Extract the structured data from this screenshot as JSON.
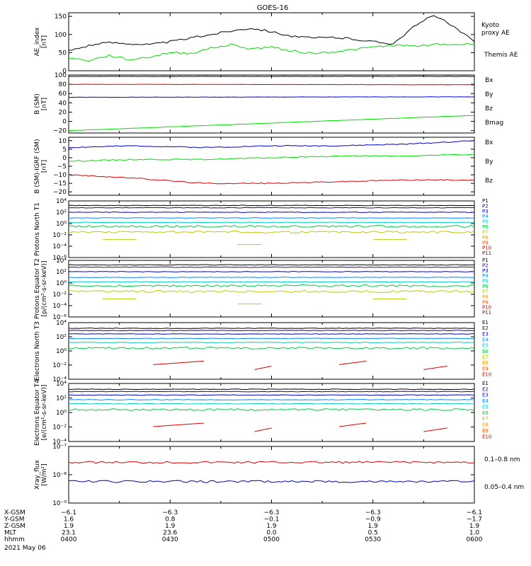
{
  "title": "GOES-16",
  "colors": {
    "black": "#000000",
    "green": "#00dd00",
    "blue": "#0000cc",
    "red": "#dd0000"
  },
  "chart_data": [
    {
      "type": "line",
      "ylabel": "AE_index [nT]",
      "yticks": [
        "0",
        "50",
        "100",
        "150"
      ],
      "ylim": [
        0,
        160
      ],
      "series": [
        {
          "name": "Kyoto proxy AE",
          "color": "#00dd00",
          "x": [
            0,
            6,
            12,
            18,
            24,
            30,
            36,
            42,
            48,
            54,
            60,
            66,
            72,
            78,
            84,
            90,
            96,
            102,
            108,
            114,
            120
          ],
          "y": [
            35,
            28,
            42,
            30,
            38,
            50,
            48,
            62,
            72,
            60,
            66,
            55,
            48,
            52,
            58,
            65,
            70,
            68,
            73,
            72,
            74
          ]
        },
        {
          "name": "Themis AE",
          "color": "#000000",
          "x": [
            0,
            6,
            12,
            18,
            24,
            30,
            36,
            42,
            48,
            54,
            60,
            66,
            72,
            78,
            84,
            90,
            96,
            102,
            108,
            114,
            120
          ],
          "y": [
            55,
            70,
            78,
            75,
            72,
            80,
            90,
            100,
            110,
            118,
            108,
            95,
            90,
            92,
            88,
            80,
            75,
            120,
            155,
            120,
            80
          ]
        }
      ],
      "legend_labels": [
        "Kyoto",
        "proxy AE",
        "Themis AE"
      ]
    },
    {
      "type": "line",
      "ylabel": "B (SM) [nT]",
      "yticks": [
        "100",
        "80",
        "60",
        "40",
        "20",
        "0",
        "−20"
      ],
      "ylim": [
        -25,
        100
      ],
      "series": [
        {
          "name": "Bx",
          "color": "#0000cc",
          "x": [
            0,
            120
          ],
          "y": [
            52,
            53
          ]
        },
        {
          "name": "By",
          "color": "#00dd00",
          "x": [
            0,
            120
          ],
          "y": [
            -20,
            13
          ]
        },
        {
          "name": "Bz",
          "color": "#dd0000",
          "x": [
            0,
            120
          ],
          "y": [
            80,
            79
          ]
        },
        {
          "name": "Bmag",
          "color": "#000000",
          "x": [
            0,
            120
          ],
          "y": [
            97,
            97
          ]
        }
      ]
    },
    {
      "type": "line",
      "ylabel": "B (SM)-IGRF (SM) [nT]",
      "yticks": [
        "10",
        "5",
        "0",
        "−5",
        "−10",
        "−15",
        "−20"
      ],
      "ylim": [
        -22,
        12
      ],
      "series": [
        {
          "name": "Bx",
          "color": "#0000cc",
          "x": [
            0,
            20,
            40,
            60,
            80,
            100,
            120
          ],
          "y": [
            6,
            7,
            6,
            7,
            7,
            8,
            10
          ]
        },
        {
          "name": "By",
          "color": "#00dd00",
          "x": [
            0,
            20,
            40,
            60,
            80,
            100,
            120
          ],
          "y": [
            -2,
            -1,
            -1,
            0,
            1,
            1,
            2
          ]
        },
        {
          "name": "Bz",
          "color": "#dd0000",
          "x": [
            0,
            20,
            40,
            60,
            80,
            100,
            120
          ],
          "y": [
            -10,
            -12,
            -15,
            -15,
            -14,
            -13,
            -13
          ]
        }
      ]
    },
    {
      "type": "line",
      "ylabel": "Protons North T1",
      "yticks": [
        "10⁴",
        "10²",
        "10⁰",
        "10⁻²",
        "10⁻⁴",
        "10⁻⁶"
      ],
      "log": true,
      "channels": [
        "P1",
        "P2",
        "P3",
        "P4",
        "P5",
        "P6",
        "P7",
        "P8",
        "P9",
        "P10",
        "P11"
      ],
      "channel_colors": [
        "#000000",
        "#330066",
        "#0000cc",
        "#0088ff",
        "#00cccc",
        "#00cc44",
        "#bbcc00",
        "#ff9900",
        "#ff5500",
        "#dd0000",
        "#990000"
      ]
    },
    {
      "type": "line",
      "ylabel": "Protons Equator T2 [p/(cm²-s-sr-keV)]",
      "yticks": [
        "10⁴",
        "10²",
        "10⁰",
        "10⁻²",
        "10⁻⁴",
        "10⁻⁶"
      ],
      "log": true,
      "channels": [
        "P1",
        "P2",
        "P3",
        "P4",
        "P5",
        "P6",
        "P7",
        "P8",
        "P9",
        "P10",
        "P11"
      ]
    },
    {
      "type": "line",
      "ylabel": "Electrons North T3",
      "yticks": [
        "10⁴",
        "10²",
        "10⁰",
        "10⁻²",
        "10⁻⁴"
      ],
      "log": true,
      "channels": [
        "E1",
        "E2",
        "E3",
        "E4",
        "E5",
        "E6",
        "E7",
        "E8",
        "E9",
        "E10"
      ],
      "channel_colors": [
        "#000000",
        "#330066",
        "#0000cc",
        "#0088ff",
        "#00cccc",
        "#00cc44",
        "#bbcc00",
        "#ff9900",
        "#ff5500",
        "#dd0000"
      ]
    },
    {
      "type": "line",
      "ylabel": "Electrons Equator T4 [e/(cm²-s-sr-keV)]",
      "yticks": [
        "10⁴",
        "10²",
        "10⁰",
        "10⁻²",
        "10⁻⁴"
      ],
      "log": true,
      "channels": [
        "E1",
        "E2",
        "E3",
        "E4",
        "E5",
        "E6",
        "E7",
        "E8",
        "E9",
        "E10"
      ]
    },
    {
      "type": "line",
      "ylabel": "Xray_flux [W/m²]",
      "yticks": [
        "10⁻⁷",
        "10⁻⁸",
        "10⁻⁹"
      ],
      "log": true,
      "series": [
        {
          "name": "0.1–0.8 nm",
          "color": "#dd0000"
        },
        {
          "name": "0.05–0.4 nm",
          "color": "#0000cc"
        }
      ]
    }
  ],
  "footer": {
    "row_labels": [
      "X-GSM",
      "Y-GSM",
      "Z-GSM",
      "MLT",
      "hhmm"
    ],
    "columns": [
      {
        "values": [
          "−6.1",
          "1.6",
          "1.9",
          "23.1",
          "0400"
        ]
      },
      {
        "values": [
          "−6.3",
          "0.8",
          "1.9",
          "23.6",
          "0430"
        ]
      },
      {
        "values": [
          "−6.3",
          "−0.1",
          "1.9",
          "0.0",
          "0500"
        ]
      },
      {
        "values": [
          "−6.3",
          "−0.9",
          "1.9",
          "0.5",
          "0530"
        ]
      },
      {
        "values": [
          "−6.1",
          "−1.7",
          "1.9",
          "1.0",
          "0600"
        ]
      }
    ],
    "date": "2021 May 06"
  }
}
